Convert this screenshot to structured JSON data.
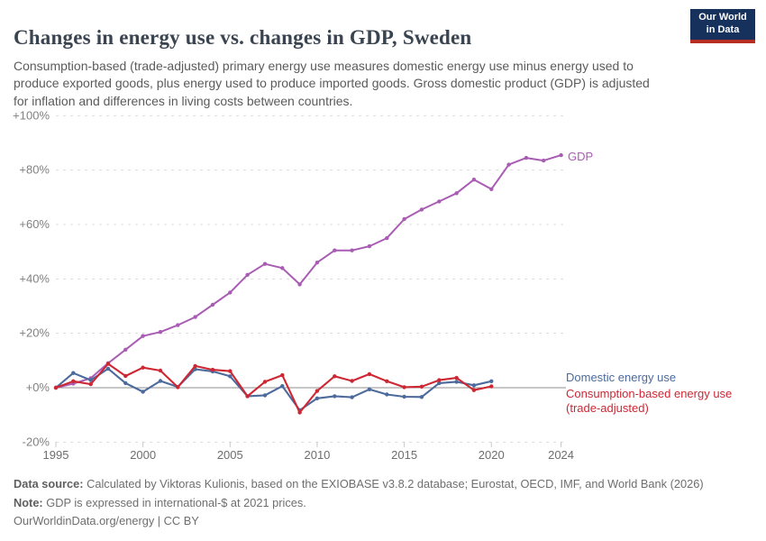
{
  "header": {
    "title": "Changes in energy use vs. changes in GDP, Sweden",
    "subtitle": "Consumption-based (trade-adjusted) primary energy use measures domestic energy use minus energy used to produce exported goods, plus energy used to produce imported goods. Gross domestic product (GDP) is adjusted for inflation and differences in living costs between countries.",
    "logo_line1": "Our World",
    "logo_line2": "in Data",
    "logo_bg_color": "#16325c",
    "logo_bar_color": "#b62e24"
  },
  "chart_data": {
    "type": "line",
    "title": "Changes in energy use vs. changes in GDP, Sweden",
    "ylim": [
      -20,
      100
    ],
    "grid": "horizontal-dashed",
    "legend_position": "right-of-line-ends",
    "yticks": [
      {
        "value": 100,
        "label": "+100%"
      },
      {
        "value": 80,
        "label": "+80%"
      },
      {
        "value": 60,
        "label": "+60%"
      },
      {
        "value": 40,
        "label": "+40%"
      },
      {
        "value": 20,
        "label": "+20%"
      },
      {
        "value": 0,
        "label": "+0%"
      },
      {
        "value": -20,
        "label": "-20%"
      }
    ],
    "xticks": [
      1995,
      2000,
      2005,
      2010,
      2015,
      2020,
      2024
    ],
    "series": [
      {
        "name": "GDP",
        "color": "#a95cb3",
        "years": [
          1995,
          1996,
          1997,
          1998,
          1999,
          2000,
          2001,
          2002,
          2003,
          2004,
          2005,
          2006,
          2007,
          2008,
          2009,
          2010,
          2011,
          2012,
          2013,
          2014,
          2015,
          2016,
          2017,
          2018,
          2019,
          2020,
          2021,
          2022,
          2023,
          2024
        ],
        "values": [
          0,
          1.5,
          3.5,
          9,
          14,
          19,
          20.5,
          23,
          26,
          30.5,
          35,
          41.5,
          45.5,
          44,
          38,
          46,
          50.5,
          50.5,
          52,
          55,
          62,
          65.5,
          68.5,
          71.5,
          76.5,
          73,
          82,
          84.5,
          83.5,
          85.5
        ]
      },
      {
        "name": "Domestic energy use",
        "color": "#4c6a9c",
        "years": [
          1995,
          1996,
          1997,
          1998,
          1999,
          2000,
          2001,
          2002,
          2003,
          2004,
          2005,
          2006,
          2007,
          2008,
          2009,
          2010,
          2011,
          2012,
          2013,
          2014,
          2015,
          2016,
          2017,
          2018,
          2019,
          2020
        ],
        "values": [
          0,
          5.4,
          2.8,
          7,
          1.7,
          -1.5,
          2.5,
          0.3,
          6.8,
          6,
          4.2,
          -3.1,
          -2.8,
          0.6,
          -8.3,
          -3.9,
          -3.1,
          -3.5,
          -0.6,
          -2.5,
          -3.3,
          -3.4,
          1.7,
          2.2,
          0.9,
          2.4
        ]
      },
      {
        "name": "Consumption-based energy use (trade-adjusted)",
        "color": "#ce2734",
        "years": [
          1995,
          1996,
          1997,
          1998,
          1999,
          2000,
          2001,
          2002,
          2003,
          2004,
          2005,
          2006,
          2007,
          2008,
          2009,
          2010,
          2011,
          2012,
          2013,
          2014,
          2015,
          2016,
          2017,
          2018,
          2019,
          2020
        ],
        "values": [
          0,
          2.4,
          1.3,
          8.8,
          4.3,
          7.4,
          6.3,
          0.2,
          8,
          6.6,
          6.1,
          -3.1,
          2.2,
          4.6,
          -9.1,
          -1.2,
          4.2,
          2.5,
          5,
          2.4,
          0.2,
          0.4,
          2.8,
          3.6,
          -0.9,
          0.5
        ]
      }
    ],
    "series_end_labels": {
      "gdp": "GDP",
      "domestic": "Domestic energy use",
      "consumption_line1": "Consumption-based energy use",
      "consumption_line2": "(trade-adjusted)"
    },
    "axis_colors": {
      "gridline": "#dcdcdc",
      "zero_line": "#8f8f8f",
      "tick_label": "#6e6e6e",
      "y_label": "#818181"
    }
  },
  "footer": {
    "data_source_label": "Data source:",
    "data_source_text": "Calculated by Viktoras Kulionis, based on the EXIOBASE v3.8.2 database; Eurostat, OECD, IMF, and World Bank (2026)",
    "note_label": "Note:",
    "note_text": "GDP is expressed in international-$ at 2021 prices.",
    "link_text": "OurWorldinData.org/energy | CC BY"
  }
}
